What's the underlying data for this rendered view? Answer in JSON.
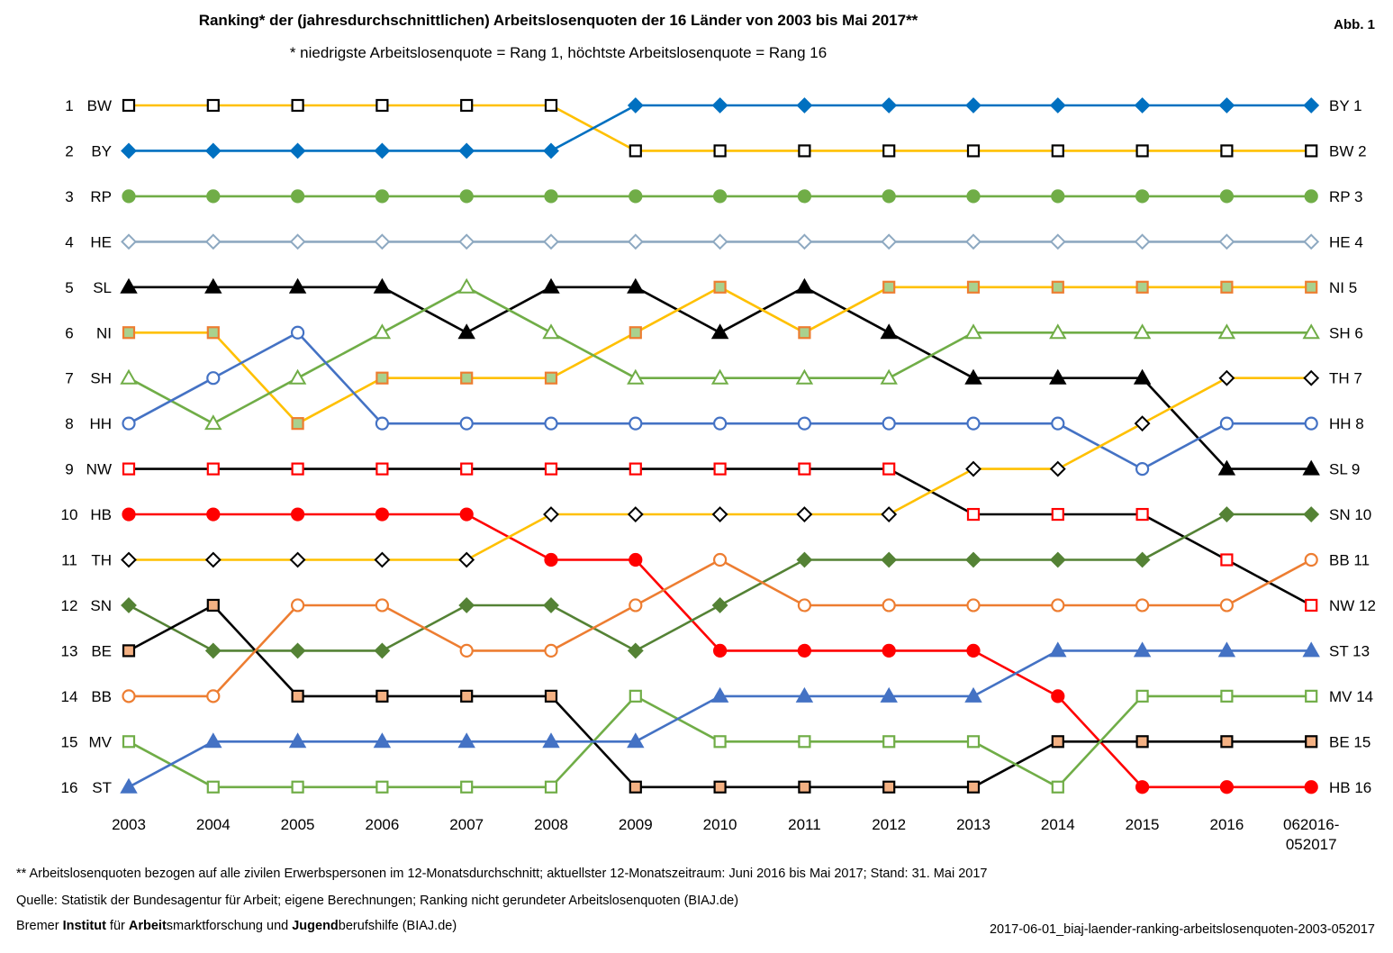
{
  "title": "Ranking* der (jahresdurchschnittlichen) Arbeitslosenquoten der 16 Länder von 2003 bis Mai 2017**",
  "subtitle": "* niedrigste Arbeitslosenquote = Rang 1, höchtste Arbeitslosenquote = Rang 16",
  "figure_label": "Abb. 1",
  "footnote_1": "** Arbeitslosenquoten  bezogen  auf alle zivilen Erwerbspersonen im 12-Monatsdurchschnitt;  aktuellster  12-Monatszeitraum:  Juni 2016 bis Mai 2017;  Stand: 31. Mai 2017",
  "footnote_2": "Quelle:  Statistik der Bundesagentur  für Arbeit;  eigene Berechnungen;  Ranking  nicht gerundeter Arbeitslosenquoten  (BIAJ.de)",
  "footnote_3": {
    "parts": [
      {
        "text": "Bremer ",
        "bold": false
      },
      {
        "text": "Institut",
        "bold": true
      },
      {
        "text": " für ",
        "bold": false
      },
      {
        "text": "Arbeit",
        "bold": true
      },
      {
        "text": "smarktforschung  und ",
        "bold": false
      },
      {
        "text": "Jugend",
        "bold": true
      },
      {
        "text": "berufshilfe  (BIAJ.de)",
        "bold": false
      }
    ]
  },
  "filename": "2017-06-01_biaj-laender-ranking-arbeitslosenquoten-2003-052017",
  "chart_data": {
    "type": "line",
    "title": "Ranking* der (jahresdurchschnittlichen) Arbeitslosenquoten der 16 Länder von 2003 bis Mai 2017**",
    "x": [
      "2003",
      "2004",
      "2005",
      "2006",
      "2007",
      "2008",
      "2009",
      "2010",
      "2011",
      "2012",
      "2013",
      "2014",
      "2015",
      "2016",
      "062016-\n052017"
    ],
    "y_axis": {
      "ticks": [
        1,
        2,
        3,
        4,
        5,
        6,
        7,
        8,
        9,
        10,
        11,
        12,
        13,
        14,
        15,
        16
      ],
      "inverted": true
    },
    "left_labels": [
      "BW",
      "BY",
      "RP",
      "HE",
      "SL",
      "NI",
      "SH",
      "HH",
      "NW",
      "HB",
      "TH",
      "SN",
      "BE",
      "BB",
      "MV",
      "ST"
    ],
    "right_labels": [
      "BY 1",
      "BW 2",
      "RP 3",
      "HE 4",
      "NI 5",
      "SH 6",
      "TH 7",
      "HH 8",
      "SL 9",
      "SN 10",
      "BB 11",
      "NW 12",
      "ST 13",
      "MV 14",
      "BE 15",
      "HB 16"
    ],
    "grid": false,
    "series": [
      {
        "name": "BW",
        "color": "#FFC000",
        "marker": "square-open",
        "marker_stroke": "#000000",
        "marker_fill": "#FFFFFF",
        "values": [
          1,
          1,
          1,
          1,
          1,
          1,
          2,
          2,
          2,
          2,
          2,
          2,
          2,
          2,
          2
        ]
      },
      {
        "name": "BY",
        "color": "#0070C0",
        "marker": "diamond",
        "marker_stroke": "#0070C0",
        "marker_fill": "#0070C0",
        "values": [
          2,
          2,
          2,
          2,
          2,
          2,
          1,
          1,
          1,
          1,
          1,
          1,
          1,
          1,
          1
        ]
      },
      {
        "name": "RP",
        "color": "#70AD47",
        "marker": "circle",
        "marker_stroke": "#70AD47",
        "marker_fill": "#70AD47",
        "values": [
          3,
          3,
          3,
          3,
          3,
          3,
          3,
          3,
          3,
          3,
          3,
          3,
          3,
          3,
          3
        ]
      },
      {
        "name": "HE",
        "color": "#8EA9C1",
        "marker": "diamond-open",
        "marker_stroke": "#8EA9C1",
        "marker_fill": "#FFFFFF",
        "values": [
          4,
          4,
          4,
          4,
          4,
          4,
          4,
          4,
          4,
          4,
          4,
          4,
          4,
          4,
          4
        ]
      },
      {
        "name": "SL",
        "color": "#000000",
        "marker": "triangle",
        "marker_stroke": "#000000",
        "marker_fill": "#000000",
        "values": [
          5,
          5,
          5,
          5,
          6,
          5,
          5,
          6,
          5,
          6,
          7,
          7,
          7,
          9,
          9
        ]
      },
      {
        "name": "NI",
        "color": "#FFC000",
        "marker": "square",
        "marker_stroke": "#ED7D31",
        "marker_fill": "#A9D18E",
        "values": [
          6,
          6,
          8,
          7,
          7,
          7,
          6,
          5,
          6,
          5,
          5,
          5,
          5,
          5,
          5
        ]
      },
      {
        "name": "SH",
        "color": "#70AD47",
        "marker": "triangle-open",
        "marker_stroke": "#70AD47",
        "marker_fill": "#FFFFFF",
        "values": [
          7,
          8,
          7,
          6,
          5,
          6,
          7,
          7,
          7,
          7,
          6,
          6,
          6,
          6,
          6
        ]
      },
      {
        "name": "HH",
        "color": "#4472C4",
        "marker": "circle-open",
        "marker_stroke": "#4472C4",
        "marker_fill": "#FFFFFF",
        "values": [
          8,
          7,
          6,
          8,
          8,
          8,
          8,
          8,
          8,
          8,
          8,
          8,
          9,
          8,
          8
        ]
      },
      {
        "name": "NW",
        "color": "#000000",
        "marker": "square-open",
        "marker_stroke": "#FF0000",
        "marker_fill": "#FFFFFF",
        "values": [
          9,
          9,
          9,
          9,
          9,
          9,
          9,
          9,
          9,
          9,
          10,
          10,
          10,
          11,
          12
        ]
      },
      {
        "name": "HB",
        "color": "#FF0000",
        "marker": "circle",
        "marker_stroke": "#FF0000",
        "marker_fill": "#FF0000",
        "values": [
          10,
          10,
          10,
          10,
          10,
          11,
          11,
          13,
          13,
          13,
          13,
          14,
          16,
          16,
          16
        ]
      },
      {
        "name": "TH",
        "color": "#FFC000",
        "marker": "diamond-open",
        "marker_stroke": "#000000",
        "marker_fill": "#FFFFFF",
        "values": [
          11,
          11,
          11,
          11,
          11,
          10,
          10,
          10,
          10,
          10,
          9,
          9,
          8,
          7,
          7
        ]
      },
      {
        "name": "SN",
        "color": "#548235",
        "marker": "diamond",
        "marker_stroke": "#548235",
        "marker_fill": "#548235",
        "values": [
          12,
          13,
          13,
          13,
          12,
          12,
          13,
          12,
          11,
          11,
          11,
          11,
          11,
          10,
          10
        ]
      },
      {
        "name": "BE",
        "color": "#000000",
        "marker": "square",
        "marker_stroke": "#000000",
        "marker_fill": "#F4B183",
        "values": [
          13,
          12,
          14,
          14,
          14,
          14,
          16,
          16,
          16,
          16,
          16,
          15,
          15,
          15,
          15
        ]
      },
      {
        "name": "BB",
        "color": "#ED7D31",
        "marker": "circle-open",
        "marker_stroke": "#ED7D31",
        "marker_fill": "#FFFFFF",
        "values": [
          14,
          14,
          12,
          12,
          13,
          13,
          12,
          11,
          12,
          12,
          12,
          12,
          12,
          12,
          11
        ]
      },
      {
        "name": "MV",
        "color": "#70AD47",
        "marker": "square-open",
        "marker_stroke": "#70AD47",
        "marker_fill": "#FFFFFF",
        "values": [
          15,
          16,
          16,
          16,
          16,
          16,
          14,
          15,
          15,
          15,
          15,
          16,
          14,
          14,
          14
        ]
      },
      {
        "name": "ST",
        "color": "#4472C4",
        "marker": "triangle",
        "marker_stroke": "#4472C4",
        "marker_fill": "#4472C4",
        "values": [
          16,
          15,
          15,
          15,
          15,
          15,
          15,
          14,
          14,
          14,
          14,
          13,
          13,
          13,
          13
        ]
      }
    ]
  }
}
